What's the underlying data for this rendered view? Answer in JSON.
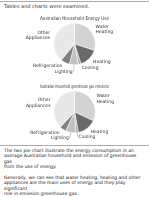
{
  "chart_data": [
    {
      "type": "pie",
      "title": "Australian Household Energy Use",
      "categories": [
        "Water\nHeating",
        "Heating",
        "Cooling",
        "Lighting",
        "Refrigeration",
        "Other\nAppliances"
      ],
      "values": [
        30,
        15,
        2,
        7,
        7,
        39
      ],
      "colors": [
        "#d3d3d3",
        "#696969",
        "#a9a9a9",
        "#c0c0c0",
        "#808080",
        "#e8e8e8"
      ]
    },
    {
      "type": "pie",
      "title": "Australian Household greenhouse gas emissions",
      "categories": [
        "Water\nHeating",
        "Heating",
        "Cooling",
        "Lighting",
        "Refrigeration",
        "Other\nAppliances"
      ],
      "values": [
        32,
        15,
        2,
        8,
        5,
        38
      ],
      "colors": [
        "#d3d3d3",
        "#696969",
        "#a9a9a9",
        "#c0c0c0",
        "#808080",
        "#e8e8e8"
      ]
    }
  ],
  "annotations": [
    "Tables and charts were examined.",
    "The two pie chart illustrate the energy consumption in an\naverage Australian household and emission of greenhouse gas\nfrom the use of energy.\n\nGenerally, we can see that water heating, heating and other\nappliances are the main uses of energy and they play significant\nrole in emission greenhouse gas."
  ]
}
